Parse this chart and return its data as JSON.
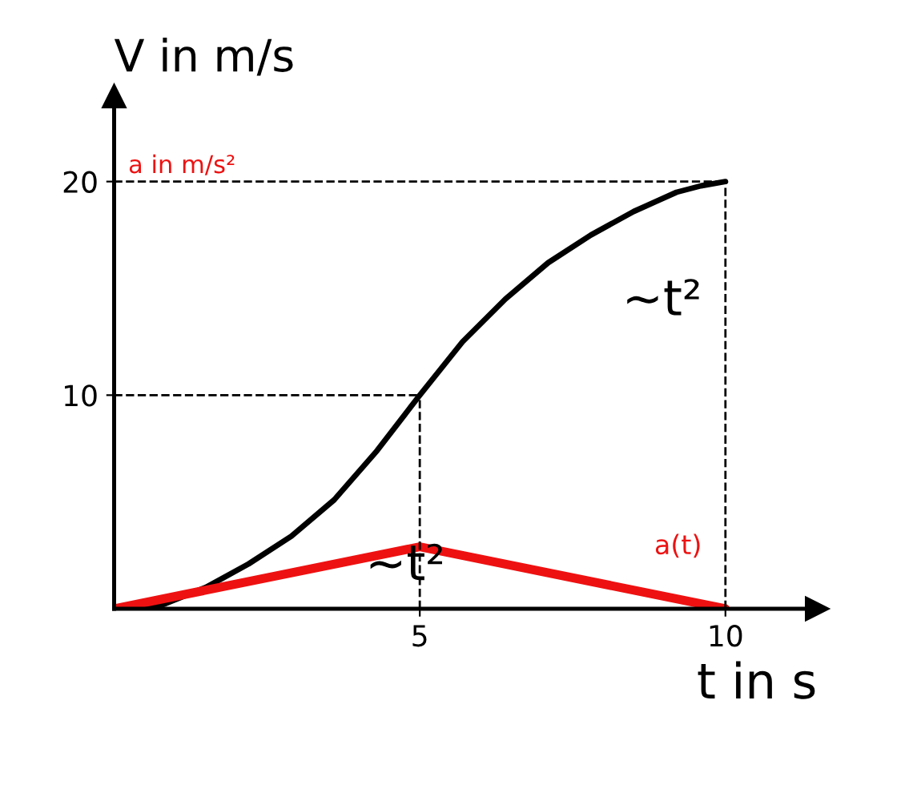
{
  "chart_data": {
    "type": "line",
    "xlabel": "t in s",
    "ylabel": "V in m/s",
    "y2label": "a in m/s²",
    "xlim": [
      0,
      11.5
    ],
    "ylim": [
      0,
      24
    ],
    "xticks": [
      5,
      10
    ],
    "yticks": [
      10,
      20
    ],
    "grid": false,
    "legend": false,
    "marker": "none",
    "line_style": "solid",
    "series": [
      {
        "color": "#000000",
        "x": [
          0,
          0.8,
          1.5,
          2.2,
          2.9,
          3.6,
          4.3,
          5,
          5.7,
          6.4,
          7.1,
          7.8,
          8.5,
          9.2,
          9.6,
          10
        ],
        "values": [
          0,
          0.2,
          1,
          2.1,
          3.4,
          5.1,
          7.4,
          10,
          12.5,
          14.5,
          16.2,
          17.5,
          18.6,
          19.5,
          19.8,
          20
        ]
      },
      {
        "name": "a(t)",
        "color": "#ee1111",
        "x": [
          0,
          5,
          10
        ],
        "values": [
          0,
          2.9,
          0
        ]
      }
    ],
    "ref_lines": [
      {
        "axis": "y",
        "value": 10,
        "line_style": "dashed",
        "color": "#000000"
      },
      {
        "axis": "y",
        "value": 20,
        "line_style": "dashed",
        "color": "#000000"
      },
      {
        "axis": "x",
        "value": 5,
        "line_style": "dashed",
        "color": "#000000"
      },
      {
        "axis": "x",
        "value": 10,
        "line_style": "dashed",
        "color": "#000000"
      }
    ],
    "annotations": [
      {
        "text": "~t²",
        "x": 7.8,
        "y": 17.5
      },
      {
        "text": "~t²",
        "x": 3.6,
        "y": 5.1
      }
    ]
  }
}
